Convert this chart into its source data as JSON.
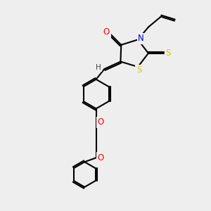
{
  "background_color": "#eeeeee",
  "bond_color": "#000000",
  "atom_colors": {
    "O": "#ff0000",
    "N": "#0000cc",
    "S": "#cccc00",
    "H": "#444444",
    "C": "#000000"
  },
  "bond_width": 1.5,
  "figsize": [
    3.0,
    3.0
  ],
  "dpi": 100,
  "xlim": [
    0,
    10
  ],
  "ylim": [
    0,
    10
  ]
}
